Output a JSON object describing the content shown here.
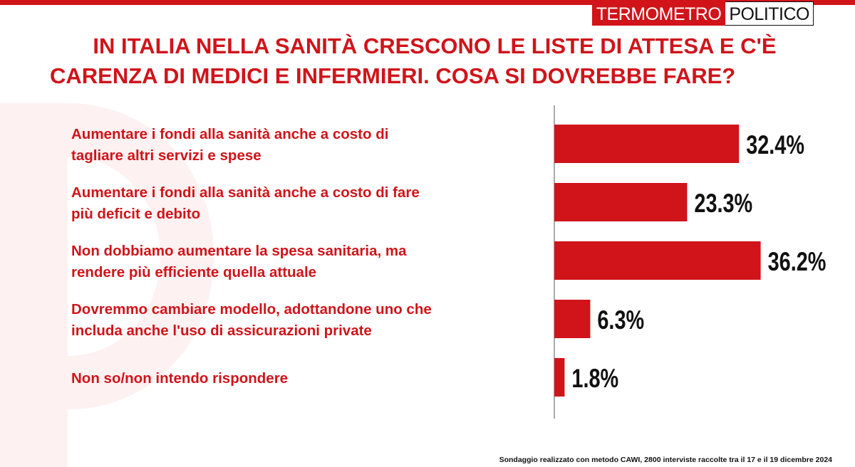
{
  "brand": {
    "part1": "TERMOMETRO",
    "part2": "POLITICO"
  },
  "title": {
    "line1": "IN ITALIA NELLA SANITÀ CRESCONO LE LISTE DI ATTESA E C'È",
    "line2": "CARENZA DI MEDICI E INFERMIERI. COSA SI DOVREBBE FARE?"
  },
  "colors": {
    "accent": "#d0141a",
    "value_text": "#111111",
    "axis": "#555555"
  },
  "chart_data": {
    "type": "bar",
    "orientation": "horizontal",
    "categories": [
      [
        "Aumentare i fondi alla sanità anche a costo di",
        "tagliare altri servizi e spese"
      ],
      [
        "Aumentare i fondi alla sanità anche a costo di fare",
        "più deficit e debito"
      ],
      [
        "Non dobbiamo aumentare la spesa sanitaria, ma",
        "rendere più efficiente quella attuale"
      ],
      [
        "Dovremmo cambiare modello, adottandone uno che",
        "includa anche l'uso di assicurazioni private"
      ],
      [
        "Non so/non intendo rispondere"
      ]
    ],
    "values": [
      32.4,
      23.3,
      36.2,
      6.3,
      1.8
    ],
    "value_labels": [
      "32.4%",
      "23.3%",
      "36.2%",
      "6.3%",
      "1.8%"
    ],
    "xlim": [
      0,
      45
    ],
    "grid": false,
    "title": "",
    "xlabel": "",
    "ylabel": ""
  },
  "footer": {
    "note": "Sondaggio realizzato con metodo CAWI, 2800 interviste raccolte tra il 17 e il 19 dicembre 2024"
  }
}
